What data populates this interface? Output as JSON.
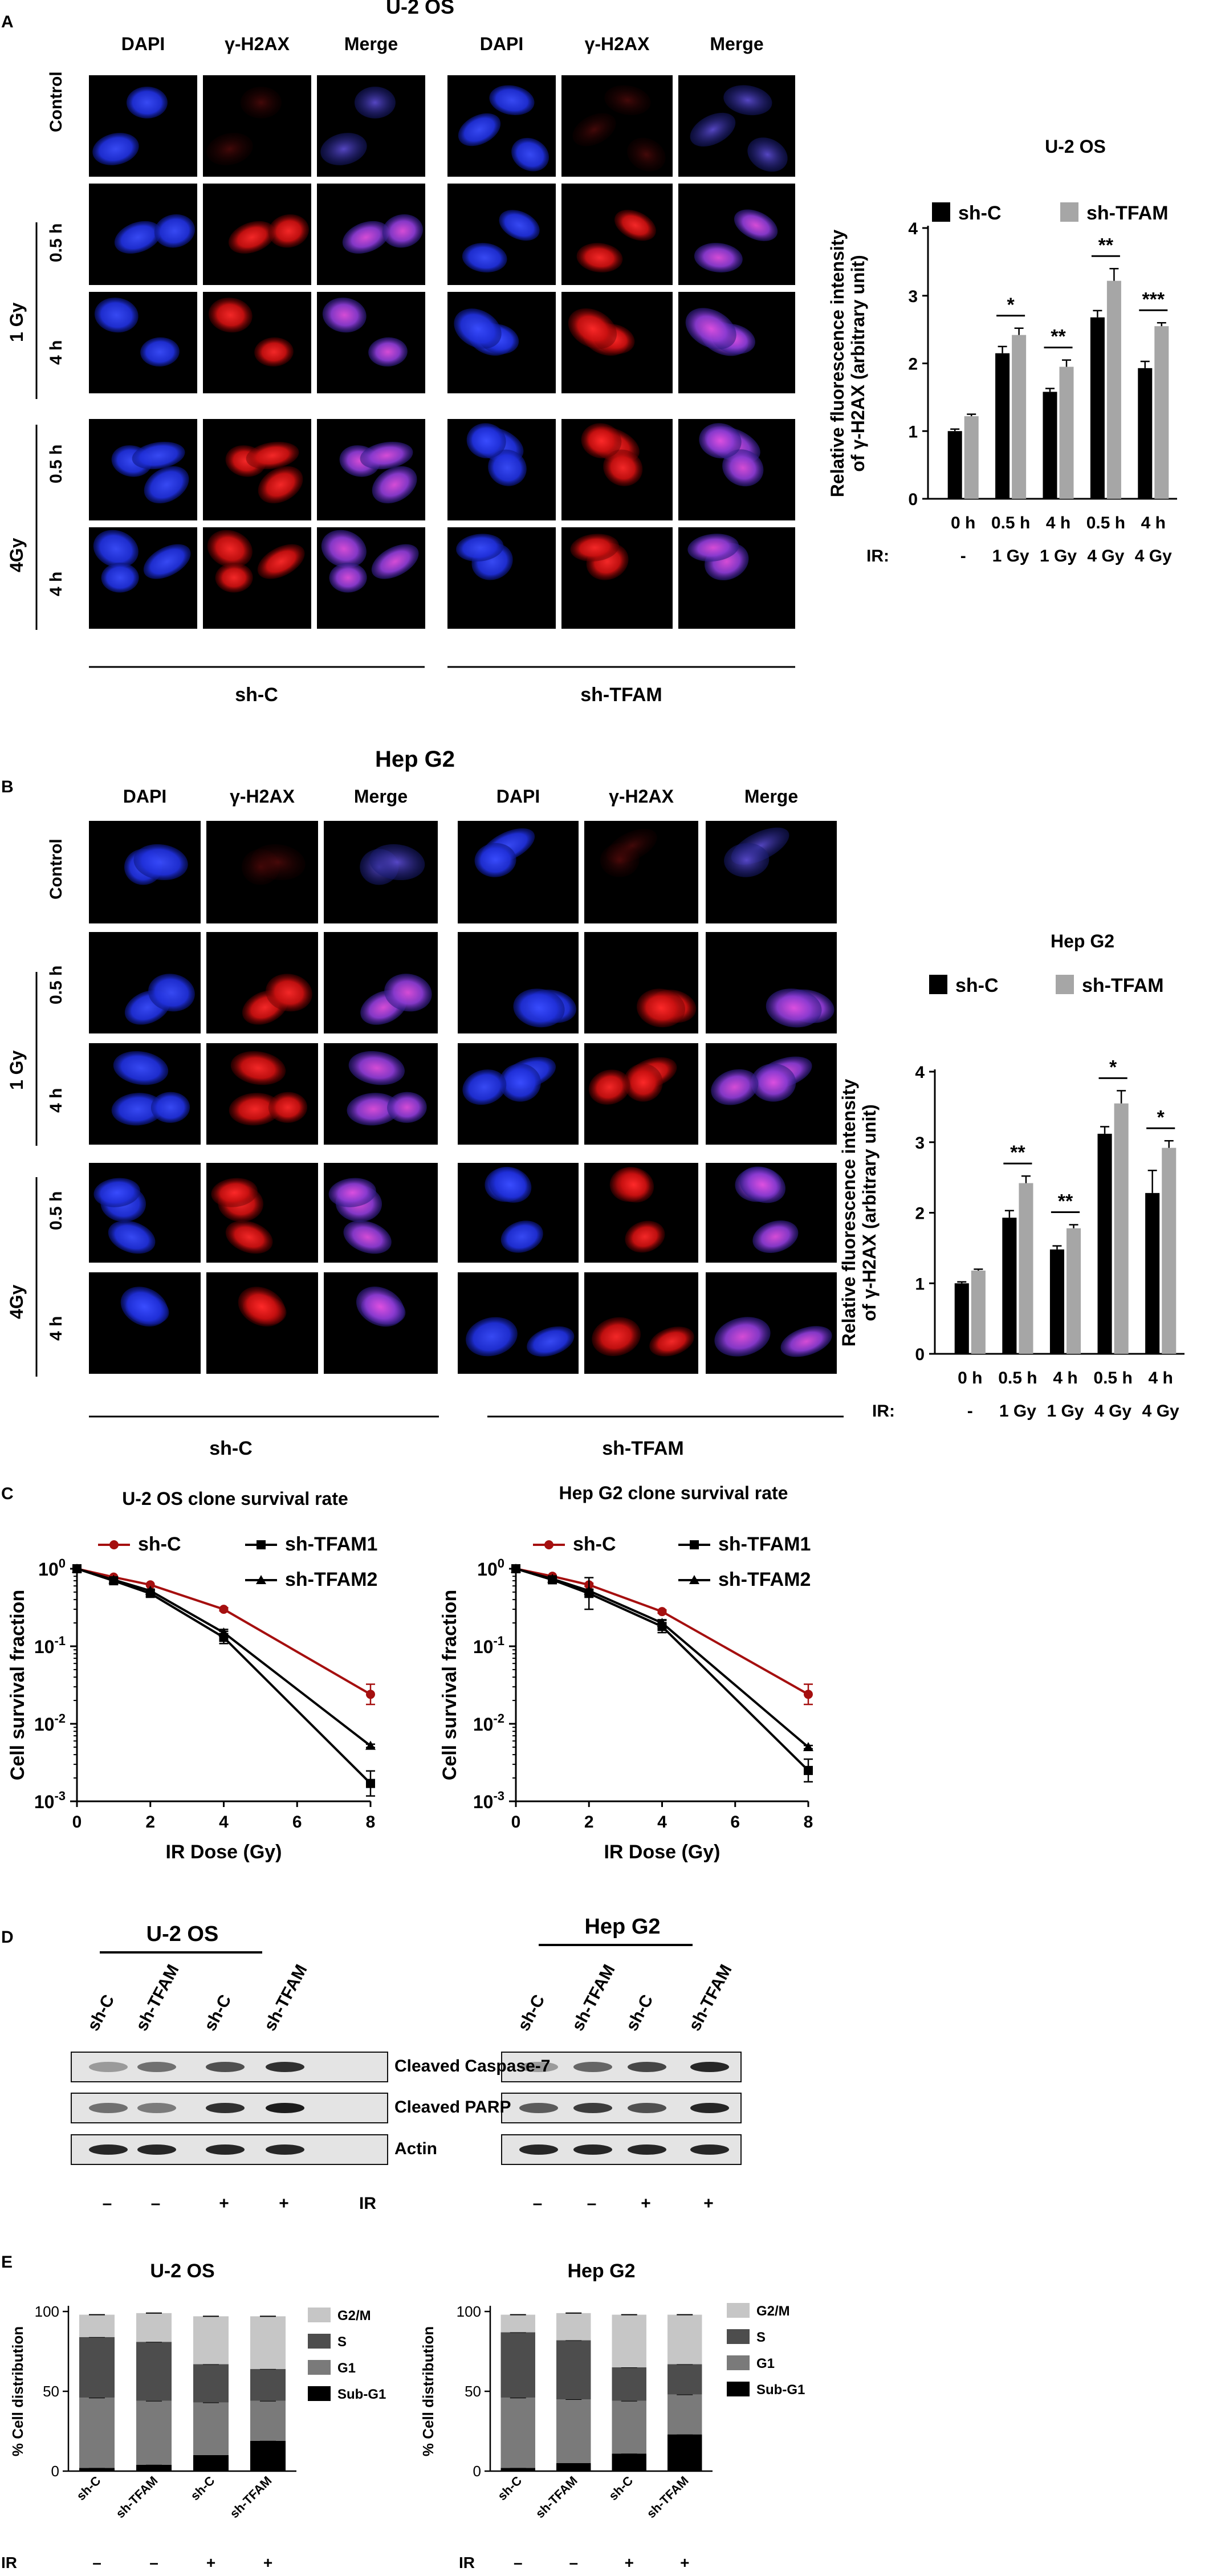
{
  "panels": {
    "A": {
      "letter": "A",
      "title": "U-2 OS",
      "col_headers": [
        "DAPI",
        "γ-H2AX",
        "Merge",
        "DAPI",
        "γ-H2AX",
        "Merge"
      ],
      "row_labels": {
        "control": "Control",
        "t05": "0.5 h",
        "t4": "4 h",
        "dose1": "1 Gy",
        "dose4": "4Gy"
      },
      "group_labels": [
        "sh-C",
        "sh-TFAM"
      ]
    },
    "B": {
      "letter": "B",
      "title": "Hep G2",
      "col_headers": [
        "DAPI",
        "γ-H2AX",
        "Merge",
        "DAPI",
        "γ-H2AX",
        "Merge"
      ],
      "row_labels": {
        "control": "Control",
        "t05": "0.5 h",
        "t4": "4 h",
        "dose1": "1 Gy",
        "dose4": "4Gy"
      },
      "group_labels": [
        "sh-C",
        "sh-TFAM"
      ]
    },
    "C": {
      "letter": "C"
    },
    "D": {
      "letter": "D",
      "groups": [
        "U-2 OS",
        "Hep G2"
      ],
      "lane_labels": [
        "sh-C",
        "sh-TFAM",
        "sh-C",
        "sh-TFAM"
      ],
      "blot_labels": [
        "Cleaved Caspase-7",
        "Cleaved PARP",
        "Actin"
      ],
      "ir_label": "IR",
      "ir_signs": [
        "–",
        "–",
        "+",
        "+"
      ],
      "band_intensity": {
        "U-2 OS": [
          [
            0.35,
            0.55,
            0.7,
            0.85
          ],
          [
            0.55,
            0.5,
            0.85,
            0.95
          ],
          [
            0.9,
            0.9,
            0.9,
            0.9
          ]
        ],
        "Hep G2": [
          [
            0.35,
            0.6,
            0.75,
            0.9
          ],
          [
            0.65,
            0.8,
            0.7,
            0.9
          ],
          [
            0.9,
            0.9,
            0.9,
            0.9
          ]
        ]
      }
    },
    "E": {
      "letter": "E",
      "ir_label": "IR",
      "ir_signs": [
        "–",
        "–",
        "+",
        "+"
      ]
    }
  },
  "chart_data": [
    {
      "id": "A-bar",
      "type": "bar",
      "title": "U-2 OS",
      "ylabel": "Relative fluorescence intensity of γ-H2AX (arbitrary unit)",
      "ylim": [
        0,
        4
      ],
      "yticks": [
        "0",
        "1",
        "2",
        "3",
        "4"
      ],
      "categories": [
        "0 h",
        "0.5 h",
        "4 h",
        "0.5 h",
        "4 h"
      ],
      "category_sub": [
        "-",
        "1 Gy",
        "1 Gy",
        "4 Gy",
        "4 Gy"
      ],
      "row_label": "IR:",
      "legend_placement": "top",
      "series": [
        {
          "name": "sh-C",
          "color": "#000000",
          "values": [
            1.0,
            2.15,
            1.58,
            2.68,
            1.93
          ],
          "errors": [
            0.03,
            0.1,
            0.05,
            0.1,
            0.1
          ]
        },
        {
          "name": "sh-TFAM",
          "color": "#a6a6a6",
          "values": [
            1.22,
            2.42,
            1.95,
            3.22,
            2.55
          ],
          "errors": [
            0.03,
            0.1,
            0.1,
            0.18,
            0.05
          ]
        }
      ],
      "significance": [
        "",
        "*",
        "**",
        "**",
        "***"
      ]
    },
    {
      "id": "B-bar",
      "type": "bar",
      "title": "Hep G2",
      "ylabel": "Relative fluorescence intensity of γ-H2AX (arbitrary unit)",
      "ylim": [
        0,
        4
      ],
      "yticks": [
        "0",
        "1",
        "2",
        "3",
        "4"
      ],
      "categories": [
        "0 h",
        "0.5 h",
        "4 h",
        "0.5 h",
        "4 h"
      ],
      "category_sub": [
        "-",
        "1 Gy",
        "1 Gy",
        "4 Gy",
        "4 Gy"
      ],
      "row_label": "IR:",
      "legend_placement": "top",
      "series": [
        {
          "name": "sh-C",
          "color": "#000000",
          "values": [
            1.0,
            1.93,
            1.48,
            3.12,
            2.28
          ],
          "errors": [
            0.02,
            0.1,
            0.05,
            0.1,
            0.32
          ]
        },
        {
          "name": "sh-TFAM",
          "color": "#a6a6a6",
          "values": [
            1.18,
            2.42,
            1.78,
            3.55,
            2.92
          ],
          "errors": [
            0.02,
            0.1,
            0.05,
            0.18,
            0.1
          ]
        }
      ],
      "significance": [
        "",
        "**",
        "**",
        "*",
        "*"
      ]
    },
    {
      "id": "C-left",
      "type": "line",
      "title": "U-2 OS clone survival rate",
      "xlabel": "IR Dose (Gy)",
      "ylabel": "Cell survival fraction",
      "xlim": [
        0,
        8
      ],
      "xticks": [
        "0",
        "2",
        "4",
        "6",
        "8"
      ],
      "y_scale": "log",
      "ylim": [
        0.001,
        1
      ],
      "yticks": [
        {
          "base": "10",
          "exp": "0"
        },
        {
          "base": "10",
          "exp": "-1"
        },
        {
          "base": "10",
          "exp": "-2"
        },
        {
          "base": "10",
          "exp": "-3"
        }
      ],
      "x": [
        0,
        1,
        2,
        4,
        8
      ],
      "series": [
        {
          "name": "sh-C",
          "color": "#a50f0f",
          "marker": "circle",
          "values": [
            1.0,
            0.78,
            0.62,
            0.3,
            0.024
          ],
          "err_factor": [
            1.0,
            1.0,
            1.0,
            1.05,
            1.35
          ]
        },
        {
          "name": "sh-TFAM1",
          "color": "#000000",
          "marker": "square",
          "values": [
            1.0,
            0.7,
            0.48,
            0.13,
            0.0017
          ],
          "err_factor": [
            1.0,
            1.05,
            1.1,
            1.2,
            1.45
          ]
        },
        {
          "name": "sh-TFAM2",
          "color": "#000000",
          "marker": "triangle",
          "values": [
            1.0,
            0.72,
            0.52,
            0.15,
            0.0052
          ],
          "err_factor": [
            1.0,
            1.0,
            1.05,
            1.1,
            1.05
          ]
        }
      ],
      "legend_placement": "top"
    },
    {
      "id": "C-right",
      "type": "line",
      "title": "Hep G2 clone survival rate",
      "xlabel": "IR Dose (Gy)",
      "ylabel": "Cell survival fraction",
      "xlim": [
        0,
        8
      ],
      "xticks": [
        "0",
        "2",
        "4",
        "6",
        "8"
      ],
      "y_scale": "log",
      "ylim": [
        0.001,
        1
      ],
      "yticks": [
        {
          "base": "10",
          "exp": "0"
        },
        {
          "base": "10",
          "exp": "-1"
        },
        {
          "base": "10",
          "exp": "-2"
        },
        {
          "base": "10",
          "exp": "-3"
        }
      ],
      "x": [
        0,
        1,
        2,
        4,
        8
      ],
      "series": [
        {
          "name": "sh-C",
          "color": "#a50f0f",
          "marker": "circle",
          "values": [
            1.0,
            0.8,
            0.62,
            0.28,
            0.024
          ],
          "err_factor": [
            1.0,
            1.0,
            1.05,
            1.05,
            1.35
          ]
        },
        {
          "name": "sh-TFAM1",
          "color": "#000000",
          "marker": "square",
          "values": [
            1.0,
            0.72,
            0.48,
            0.18,
            0.0025
          ],
          "err_factor": [
            1.0,
            1.05,
            1.6,
            1.2,
            1.4
          ]
        },
        {
          "name": "sh-TFAM2",
          "color": "#000000",
          "marker": "triangle",
          "values": [
            1.0,
            0.74,
            0.52,
            0.2,
            0.005
          ],
          "err_factor": [
            1.0,
            1.0,
            1.05,
            1.1,
            1.05
          ]
        }
      ],
      "legend_placement": "top"
    },
    {
      "id": "E-left",
      "type": "bar",
      "stacked": true,
      "title": "U-2 OS",
      "ylabel": "% Cell distribution",
      "ylim": [
        0,
        100
      ],
      "yticks": [
        "0",
        "50",
        "100"
      ],
      "categories": [
        "sh-C",
        "sh-TFAM",
        "sh-C",
        "sh-TFAM"
      ],
      "legend_placement": "right",
      "series": [
        {
          "name": "Sub-G1",
          "color": "#000000",
          "values": [
            2,
            4,
            10,
            19
          ]
        },
        {
          "name": "G1",
          "color": "#7a7a7a",
          "values": [
            44,
            40,
            33,
            25
          ]
        },
        {
          "name": "S",
          "color": "#4d4d4d",
          "values": [
            38,
            37,
            24,
            20
          ]
        },
        {
          "name": "G2/M",
          "color": "#c6c6c6",
          "values": [
            14,
            18,
            30,
            33
          ]
        }
      ]
    },
    {
      "id": "E-right",
      "type": "bar",
      "stacked": true,
      "title": "Hep G2",
      "ylabel": "% Cell distribution",
      "ylim": [
        0,
        100
      ],
      "yticks": [
        "0",
        "50",
        "100"
      ],
      "categories": [
        "sh-C",
        "sh-TFAM",
        "sh-C",
        "sh-TFAM"
      ],
      "legend_placement": "right",
      "series": [
        {
          "name": "Sub-G1",
          "color": "#000000",
          "values": [
            2,
            5,
            11,
            23
          ]
        },
        {
          "name": "G1",
          "color": "#7a7a7a",
          "values": [
            44,
            40,
            33,
            25
          ]
        },
        {
          "name": "S",
          "color": "#4d4d4d",
          "values": [
            41,
            37,
            21,
            19
          ]
        },
        {
          "name": "G2/M",
          "color": "#c6c6c6",
          "values": [
            11,
            17,
            33,
            31
          ]
        }
      ]
    }
  ]
}
